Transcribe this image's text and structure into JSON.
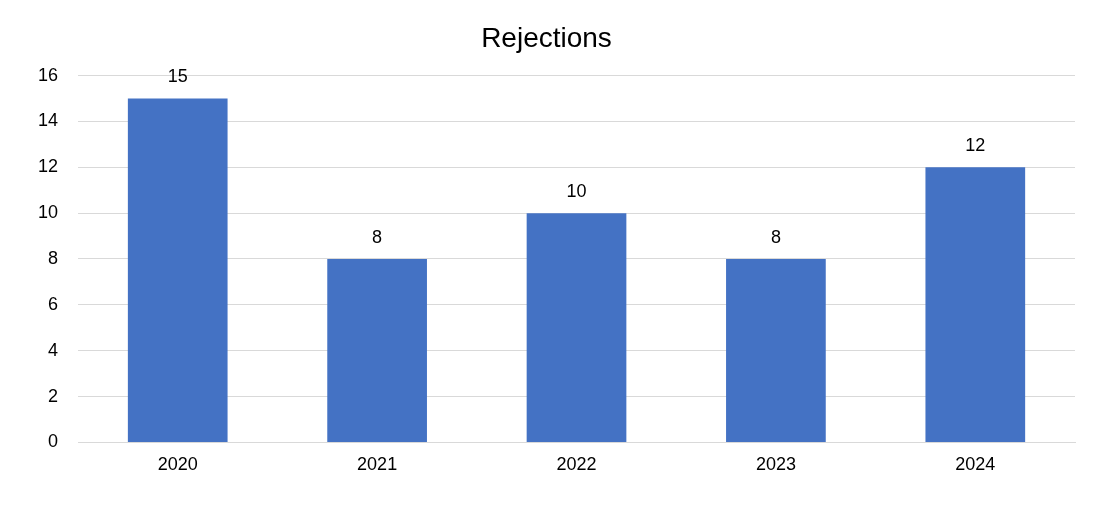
{
  "chart_data": {
    "type": "bar",
    "title": "Rejections",
    "categories": [
      "2020",
      "2021",
      "2022",
      "2023",
      "2024"
    ],
    "values": [
      15,
      8,
      10,
      8,
      12
    ],
    "color": "#4472c4",
    "ylim": [
      0,
      16
    ],
    "yticks": [
      0,
      2,
      4,
      6,
      8,
      10,
      12,
      14,
      16
    ],
    "grid": "y",
    "data_labels": true,
    "legend": false
  }
}
